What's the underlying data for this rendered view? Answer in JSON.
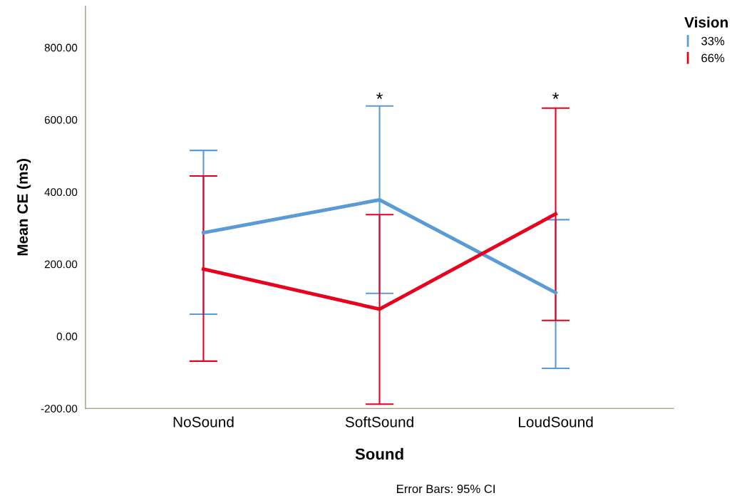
{
  "chart_data": {
    "type": "line",
    "xlabel": "Sound",
    "ylabel": "Mean CE (ms)",
    "legend_title": "Vision",
    "categories": [
      "NoSound",
      "SoftSound",
      "LoudSound"
    ],
    "series": [
      {
        "name": "33%",
        "color": "#5b9bd5",
        "values": [
          287,
          378,
          121
        ],
        "errors": [
          [
            61,
            515
          ],
          [
            119,
            638
          ],
          [
            -89,
            323
          ]
        ]
      },
      {
        "name": "66%",
        "color": "#e8001c",
        "values": [
          186,
          75,
          339
        ],
        "errors": [
          [
            -69,
            444
          ],
          [
            -188,
            337
          ],
          [
            44,
            632
          ]
        ]
      }
    ],
    "ylim": [
      -200,
      915
    ],
    "yticks": [
      {
        "value": -200,
        "label": "-200.00"
      },
      {
        "value": 0,
        "label": "0.00"
      },
      {
        "value": 200,
        "label": "200.00"
      },
      {
        "value": 400,
        "label": "400.00"
      },
      {
        "value": 600,
        "label": "600.00"
      },
      {
        "value": 800,
        "label": "800.00"
      }
    ],
    "annotations": [
      "*",
      "*",
      "Error Bars: 95% CI"
    ],
    "legend": "top right",
    "grid": false,
    "line_style": "solid"
  }
}
